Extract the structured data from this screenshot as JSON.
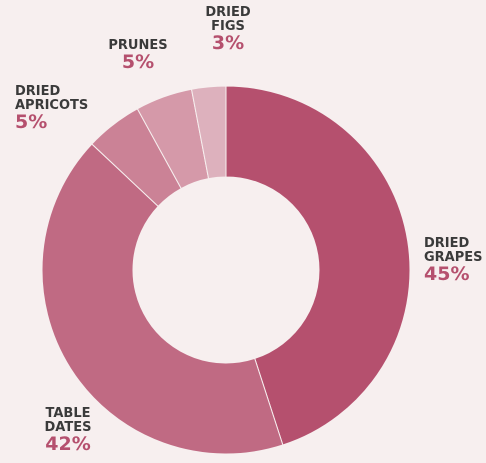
{
  "chart_data": {
    "type": "donut",
    "categories": [
      "DRIED GRAPES",
      "TABLE DATES",
      "DRIED APRICOTS",
      "PRUNES",
      "DRIED FIGS"
    ],
    "values": [
      45,
      42,
      5,
      5,
      3
    ],
    "value_labels": [
      "45%",
      "42%",
      "5%",
      "5%",
      "3%"
    ],
    "colors": [
      "#b5506e",
      "#c06a83",
      "#cb8296",
      "#d599a9",
      "#ddb1bd"
    ]
  }
}
